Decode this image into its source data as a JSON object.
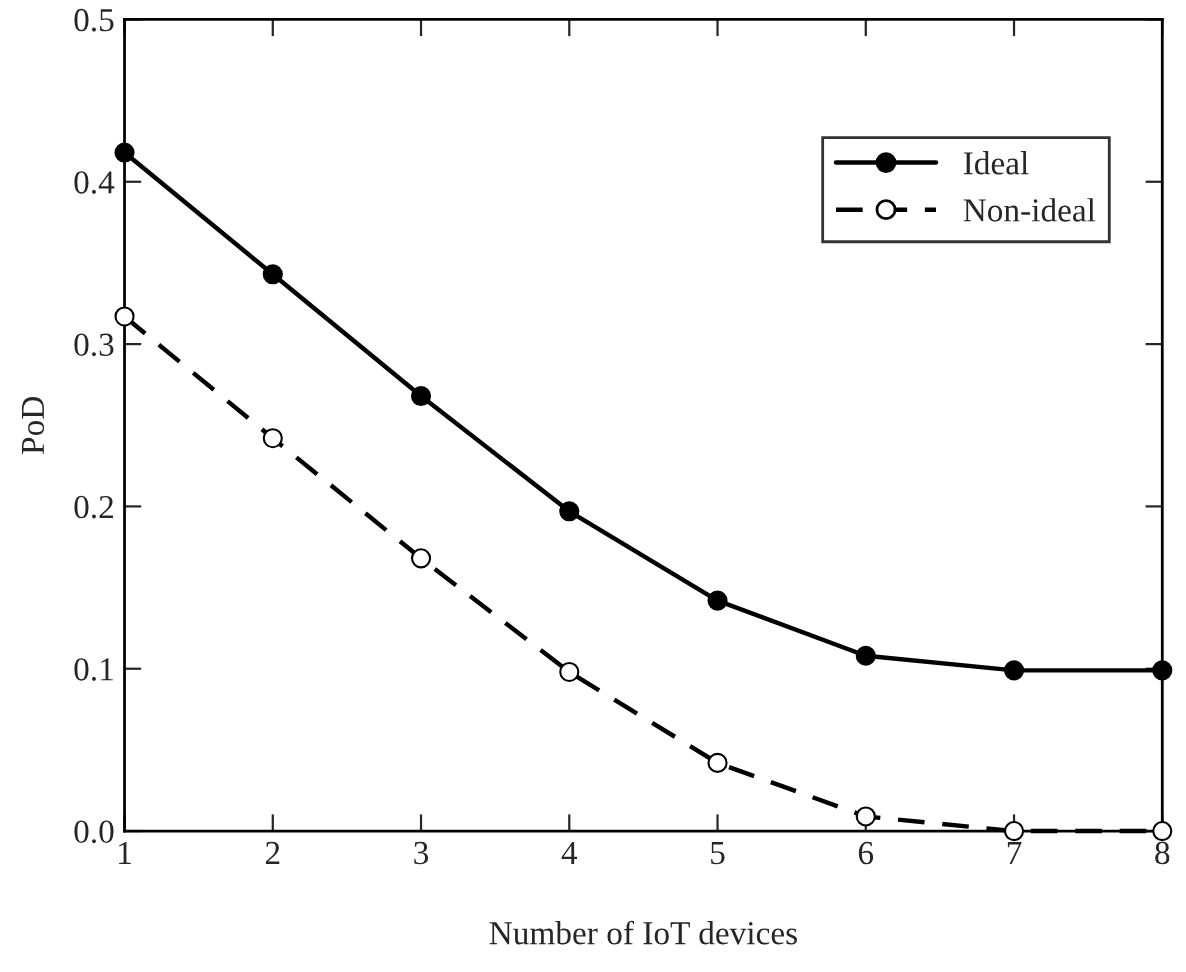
{
  "chart_data": {
    "type": "line",
    "xlabel": "Number of IoT devices",
    "ylabel": "PoD",
    "x": [
      1,
      2,
      3,
      4,
      5,
      6,
      7,
      8
    ],
    "series": [
      {
        "name": "Ideal",
        "color": "#000000",
        "values": [
          0.418,
          0.343,
          0.268,
          0.197,
          0.142,
          0.108,
          0.099,
          0.099
        ],
        "marker": "circle",
        "line_style": "solid"
      },
      {
        "name": "Non-ideal",
        "color": "#000000",
        "values": [
          0.317,
          0.242,
          0.168,
          0.098,
          0.042,
          0.009,
          0.0,
          0.0
        ],
        "marker": "circle",
        "line_style": "dashed"
      }
    ],
    "xlim": [
      1,
      8
    ],
    "xticks": [
      1,
      2,
      3,
      4,
      5,
      6,
      7,
      8
    ],
    "ylim": [
      0,
      0.5
    ],
    "yticks": [
      {
        "value": 0,
        "label": "0.0"
      },
      {
        "value": 0.1,
        "label": "0.1"
      },
      {
        "value": 0.2,
        "label": "0.2"
      },
      {
        "value": 0.3,
        "label": "0.3"
      },
      {
        "value": 0.4,
        "label": "0.4"
      },
      {
        "value": 0.5,
        "label": "0.5"
      }
    ],
    "grid": false,
    "legend": "top right"
  }
}
